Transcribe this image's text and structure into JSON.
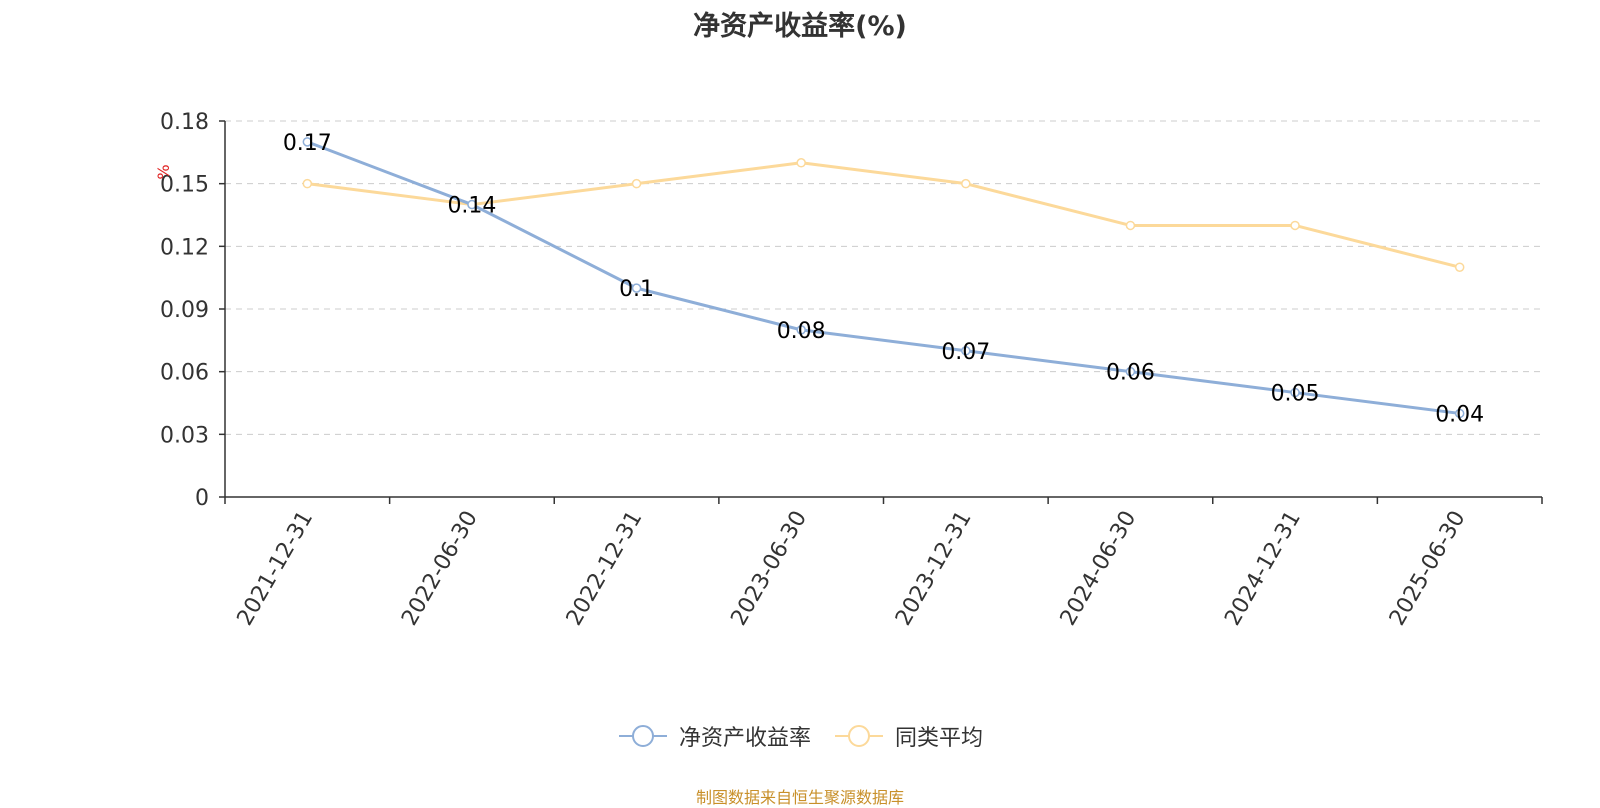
{
  "title": "净资产收益率(%)",
  "source_note": "制图数据来自恒生聚源数据库",
  "colors": {
    "series_1": "#8eaed8",
    "series_2": "#fcd99a",
    "unit_label": "#e02020",
    "grid": "#cccccc",
    "axis": "#333333",
    "text": "#333333"
  },
  "chart_data": {
    "type": "line",
    "title": "净资产收益率(%)",
    "ylabel": "%",
    "ylim": [
      0,
      0.18
    ],
    "yticks": [
      "0",
      "0.03",
      "0.06",
      "0.09",
      "0.12",
      "0.15",
      "0.18"
    ],
    "grid": true,
    "legend_position": "bottom-center",
    "categories": [
      "2021-12-31",
      "2022-06-30",
      "2022-12-31",
      "2023-06-30",
      "2023-12-31",
      "2024-06-30",
      "2024-12-31",
      "2025-06-30"
    ],
    "series": [
      {
        "name": "净资产收益率",
        "values": [
          0.17,
          0.14,
          0.1,
          0.08,
          0.07,
          0.06,
          0.05,
          0.04
        ],
        "labels": [
          "0.17",
          "0.14",
          "0.1",
          "0.08",
          "0.07",
          "0.06",
          "0.05",
          "0.04"
        ]
      },
      {
        "name": "同类平均",
        "values": [
          0.15,
          0.14,
          0.15,
          0.16,
          0.15,
          0.13,
          0.13,
          0.11
        ]
      }
    ]
  }
}
